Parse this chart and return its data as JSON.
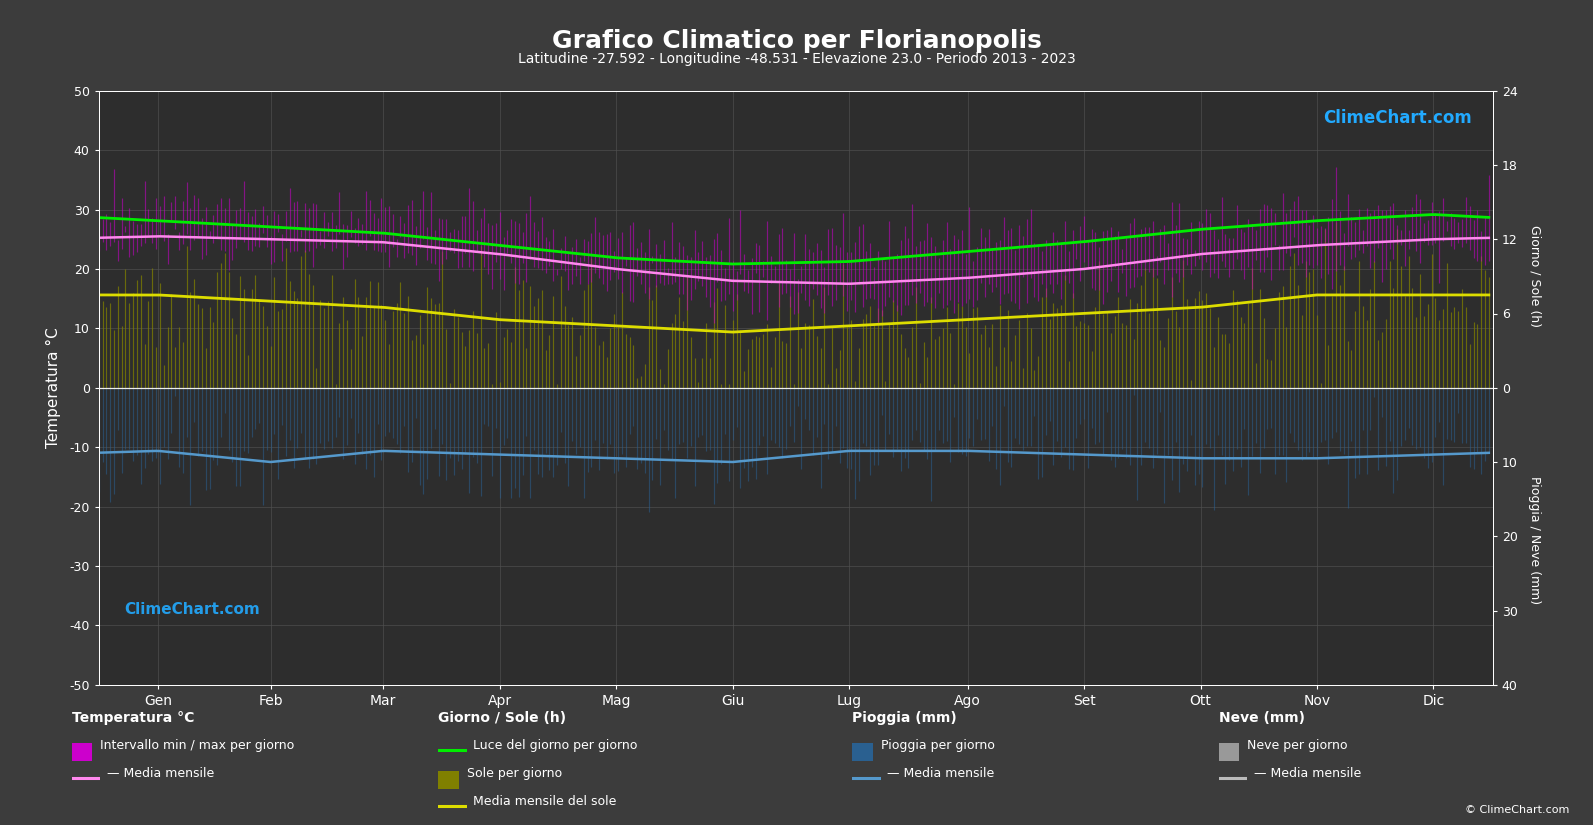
{
  "title": "Grafico Climatico per Florianopolis",
  "subtitle": "Latitudine -27.592 - Longitudine -48.531 - Elevazione 23.0 - Periodo 2013 - 2023",
  "bg_color": "#3c3c3c",
  "plot_bg_color": "#2d2d2d",
  "grid_color": "#505050",
  "text_color": "#ffffff",
  "months": [
    "Gen",
    "Feb",
    "Mar",
    "Apr",
    "Mag",
    "Giu",
    "Lug",
    "Ago",
    "Set",
    "Ott",
    "Nov",
    "Dic"
  ],
  "days_per_month": [
    31,
    28,
    31,
    30,
    31,
    30,
    31,
    31,
    30,
    31,
    30,
    31
  ],
  "temp_max_monthly": [
    30.5,
    30.0,
    29.5,
    27.5,
    25.5,
    23.5,
    23.5,
    24.5,
    25.5,
    27.5,
    29.0,
    30.5
  ],
  "temp_min_monthly": [
    23.5,
    23.5,
    22.5,
    20.0,
    17.5,
    15.5,
    14.5,
    15.0,
    17.0,
    19.0,
    21.5,
    23.0
  ],
  "temp_mean_monthly": [
    25.5,
    25.0,
    24.5,
    22.5,
    20.0,
    18.0,
    17.5,
    18.5,
    20.0,
    22.5,
    24.0,
    25.0
  ],
  "daylight_monthly": [
    13.5,
    13.0,
    12.5,
    11.5,
    10.5,
    10.0,
    10.2,
    11.0,
    11.8,
    12.8,
    13.5,
    14.0
  ],
  "sunshine_monthly": [
    7.5,
    7.0,
    6.5,
    5.5,
    5.0,
    4.5,
    5.0,
    5.5,
    6.0,
    6.5,
    7.5,
    7.5
  ],
  "rain_mean_monthly": [
    8.5,
    10.0,
    8.5,
    9.0,
    9.5,
    10.0,
    8.5,
    8.5,
    9.0,
    9.5,
    9.5,
    9.0
  ],
  "sun_max": 24,
  "rain_max": 40,
  "temp_ylim_min": -50,
  "temp_ylim_max": 50,
  "left_label": "Temperatura °C",
  "right_label_top": "Giorno / Sole (h)",
  "right_label_bottom": "Pioggia / Neve (mm)",
  "watermark": "ClimeChart.com",
  "copyright": "© ClimeChart.com",
  "color_temp_fill": "#cc00cc",
  "color_sunshine_fill": "#808000",
  "color_daylight_line": "#00ee00",
  "color_temp_mean_line": "#ff88ee",
  "color_sunshine_mean_line": "#dddd00",
  "color_rain_fill": "#2a6090",
  "color_rain_mean_line": "#5599cc"
}
